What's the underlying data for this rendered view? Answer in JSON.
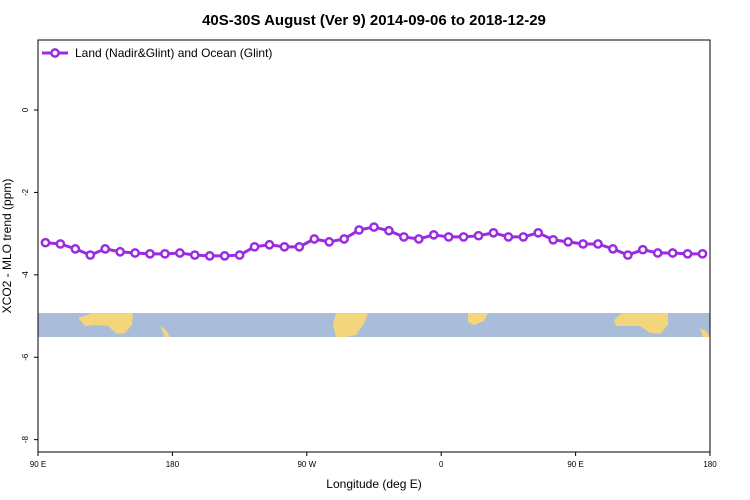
{
  "chart_data": {
    "type": "line",
    "title": "40S-30S August (Ver 9)   2014-09-06 to 2018-12-29",
    "x_label": "Longitude (deg E)",
    "y_label": "XCO2 - MLO trend (ppm)",
    "x": [
      95,
      105,
      115,
      125,
      135,
      145,
      155,
      165,
      175,
      185,
      195,
      205,
      215,
      225,
      235,
      245,
      255,
      265,
      275,
      285,
      295,
      305,
      315,
      325,
      335,
      345,
      355,
      365,
      375,
      385,
      395,
      405,
      415,
      425,
      435,
      445,
      455,
      465,
      475,
      485,
      495,
      505,
      515,
      525,
      535
    ],
    "series": [
      {
        "name": "Land (Nadir&Glint) and Ocean (Glint)",
        "color": "#9b2be0",
        "values": [
          -3.22,
          -3.25,
          -3.37,
          -3.52,
          -3.37,
          -3.44,
          -3.47,
          -3.49,
          -3.49,
          -3.47,
          -3.52,
          -3.54,
          -3.54,
          -3.52,
          -3.32,
          -3.27,
          -3.32,
          -3.32,
          -3.13,
          -3.2,
          -3.13,
          -2.91,
          -2.84,
          -2.93,
          -3.08,
          -3.13,
          -3.03,
          -3.08,
          -3.08,
          -3.05,
          -2.98,
          -3.08,
          -3.08,
          -2.98,
          -3.15,
          -3.2,
          -3.25,
          -3.25,
          -3.37,
          -3.52,
          -3.39,
          -3.47,
          -3.47,
          -3.49,
          -3.49
        ]
      }
    ],
    "xlim": [
      90,
      540
    ],
    "xticks": [
      {
        "value": 90,
        "label": "90 E"
      },
      180,
      {
        "value": 270,
        "label": "90 W"
      },
      {
        "value": 360,
        "label": "0"
      },
      {
        "value": 450,
        "label": "90 E"
      },
      {
        "value": 540,
        "label": "180"
      }
    ],
    "ylim": [
      -8.3,
      1.7
    ],
    "yticks": [
      0,
      -2,
      -4,
      -6,
      -8
    ],
    "grid": false,
    "legend": "top-left"
  }
}
